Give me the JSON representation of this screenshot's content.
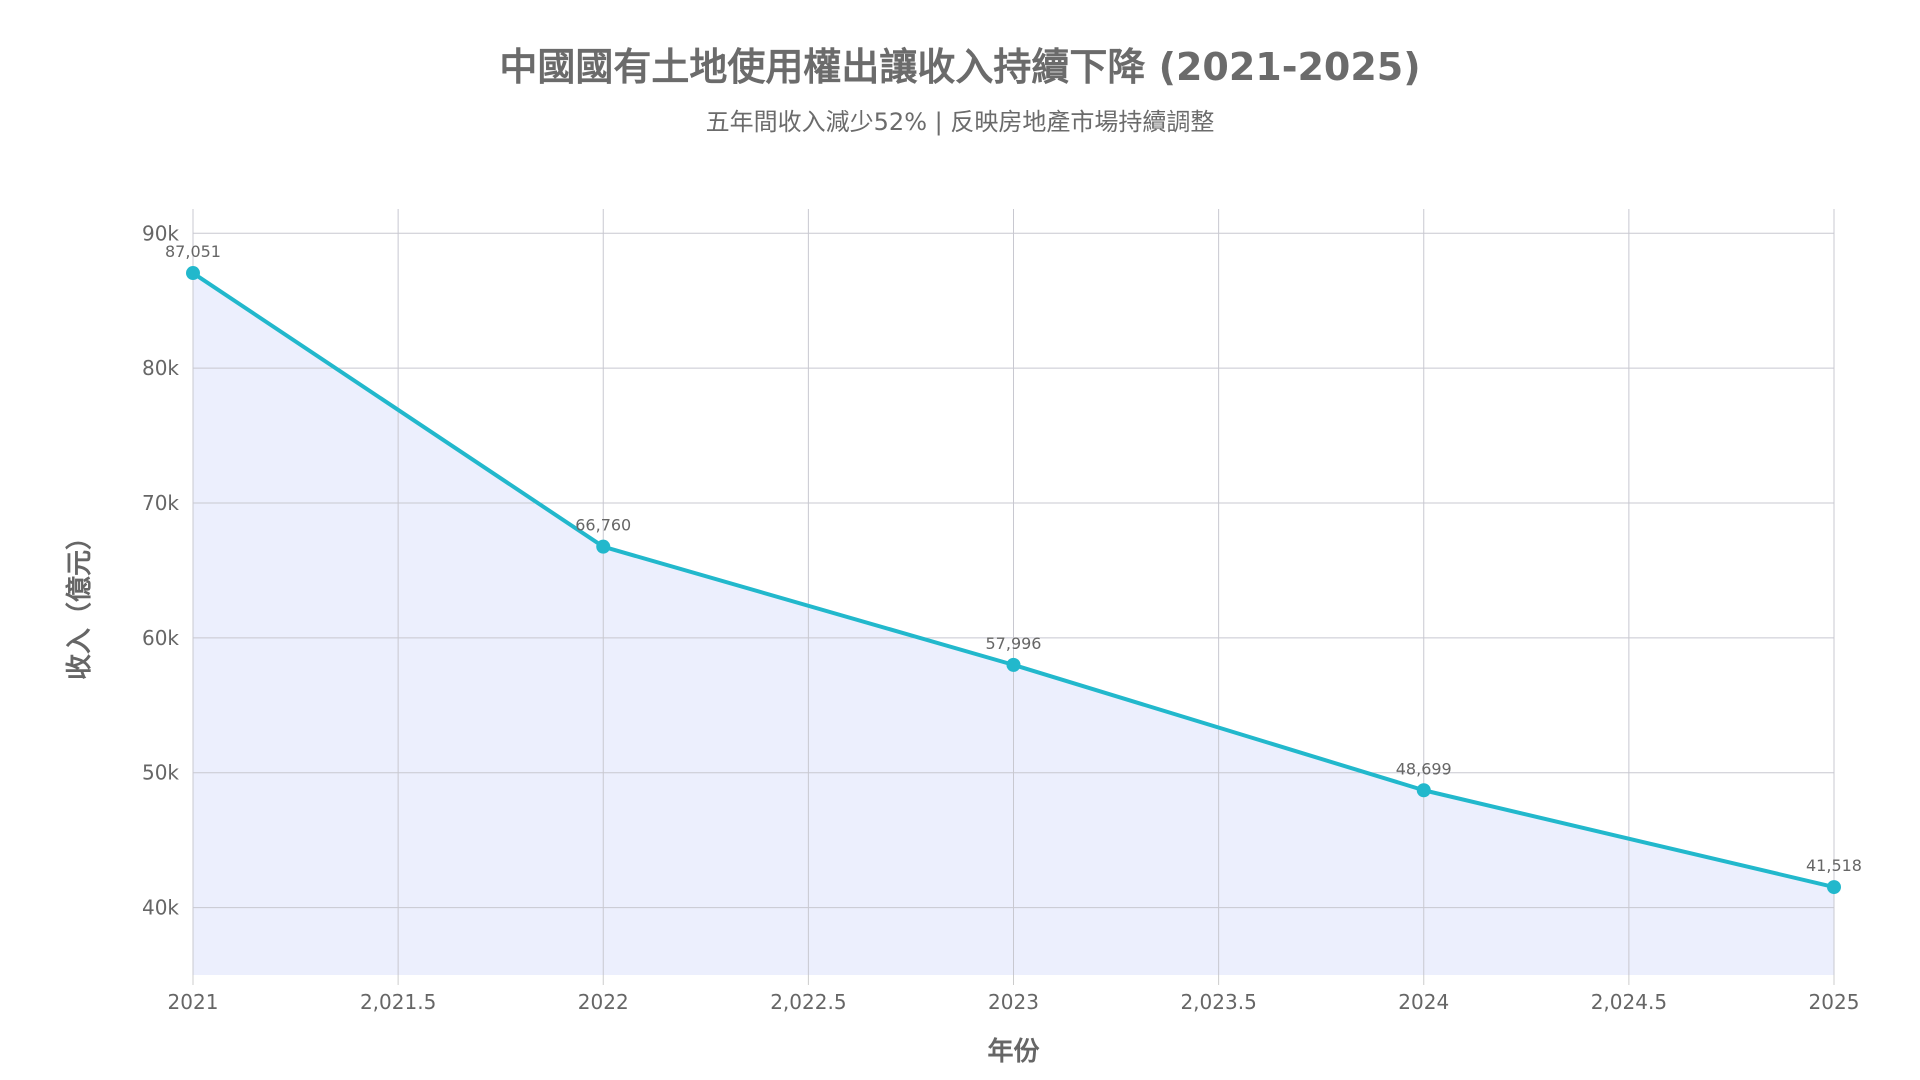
{
  "chart_data": {
    "type": "area",
    "title": "中國國有土地使用權出讓收入持續下降 (2021-2025)",
    "subtitle": "五年間收入減少52% | 反映房地產市場持續調整",
    "xlabel": "年份",
    "ylabel": "收入（億元）",
    "x": [
      2021,
      2022,
      2023,
      2024,
      2025
    ],
    "values": [
      87051,
      66760,
      57996,
      48699,
      41518
    ],
    "data_labels": [
      "87,051",
      "66,760",
      "57,996",
      "48,699",
      "41,518"
    ],
    "xlim": [
      2021,
      2025
    ],
    "ylim": [
      35000,
      91800
    ],
    "x_ticks": [
      2021,
      2021.5,
      2022,
      2022.5,
      2023,
      2023.5,
      2024,
      2024.5,
      2025
    ],
    "x_tick_labels": [
      "2021",
      "2,021.5",
      "2022",
      "2,022.5",
      "2023",
      "2,023.5",
      "2024",
      "2,024.5",
      "2025"
    ],
    "y_ticks": [
      40000,
      50000,
      60000,
      70000,
      80000,
      90000
    ],
    "y_tick_labels": [
      "40k",
      "50k",
      "60k",
      "70k",
      "80k",
      "90k"
    ],
    "grid": true,
    "legend": "none",
    "line_color": "#22b8cc",
    "fill_color": "#eceffd"
  }
}
